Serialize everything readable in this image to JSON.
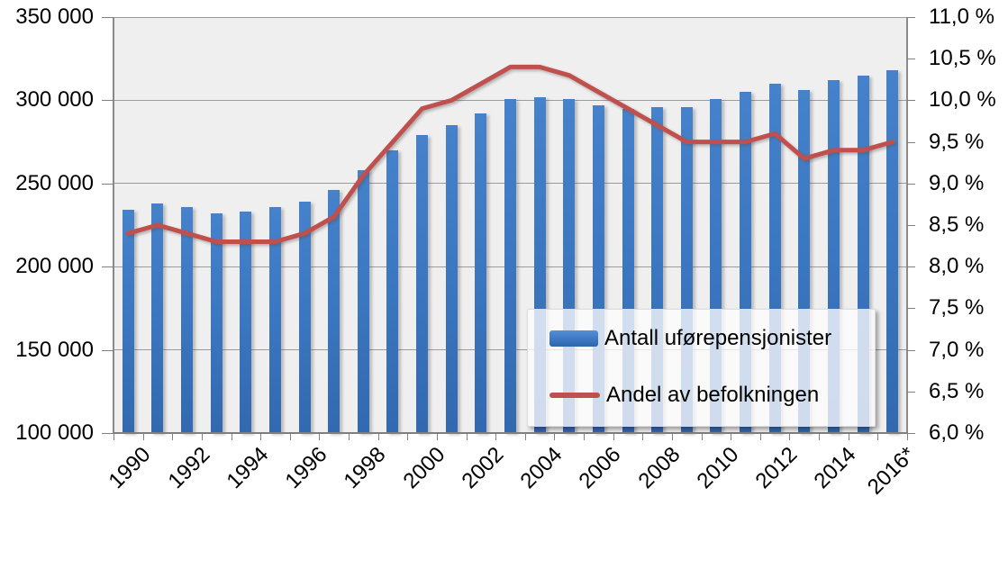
{
  "chart_data": {
    "type": "combo",
    "title": "",
    "categories": [
      "1990",
      "1991",
      "1992",
      "1993",
      "1994",
      "1995",
      "1996",
      "1997",
      "1998",
      "1999",
      "2000",
      "2001",
      "2002",
      "2003",
      "2004",
      "2005",
      "2006",
      "2007",
      "2008",
      "2009",
      "2010",
      "2011",
      "2012",
      "2013",
      "2014",
      "2015",
      "2016*"
    ],
    "series": [
      {
        "name": "Antall uførepensjonister",
        "type": "bar",
        "yaxis": "left",
        "color": "#3D79C4",
        "values": [
          234000,
          238000,
          236000,
          232000,
          233000,
          236000,
          239000,
          246000,
          258000,
          270000,
          279000,
          285000,
          292000,
          301000,
          302000,
          301000,
          297000,
          295000,
          296000,
          296000,
          301000,
          305000,
          310000,
          306000,
          312000,
          315000,
          318000
        ]
      },
      {
        "name": "Andel av befolkningen",
        "type": "line",
        "yaxis": "right",
        "color": "#C0504D",
        "values": [
          8.4,
          8.5,
          8.4,
          8.3,
          8.3,
          8.3,
          8.4,
          8.6,
          9.1,
          9.5,
          9.9,
          10.0,
          10.2,
          10.4,
          10.4,
          10.3,
          10.1,
          9.9,
          9.7,
          9.5,
          9.5,
          9.5,
          9.6,
          9.3,
          9.4,
          9.4,
          9.5
        ]
      }
    ],
    "y_axis_left": {
      "min": 100000,
      "max": 350000,
      "step": 50000,
      "tick_labels": [
        "350 000",
        "300 000",
        "250 000",
        "200 000",
        "150 000",
        "100 000"
      ]
    },
    "y_axis_right": {
      "min": 6.0,
      "max": 11.0,
      "step": 0.5,
      "tick_labels": [
        "11,0 %",
        "10,5 %",
        "10,0 %",
        "9,5 %",
        "9,0 %",
        "8,5 %",
        "8,0 %",
        "7,5 %",
        "7,0 %",
        "6,5 %",
        "6,0 %"
      ]
    },
    "x_axis": {
      "label_every": 2,
      "tick_labels": [
        "1990",
        "1992",
        "1994",
        "1996",
        "1998",
        "2000",
        "2002",
        "2004",
        "2006",
        "2008",
        "2010",
        "2012",
        "2014",
        "2016*"
      ]
    },
    "grid": true,
    "legend_position": "inside-bottom-right"
  },
  "colors": {
    "bar": "#3D79C4",
    "line": "#C0504D",
    "plot_background": "#F0EFEF",
    "gridline": "#9B9B9B",
    "axis": "#7F7F7F",
    "text": "#000000"
  }
}
